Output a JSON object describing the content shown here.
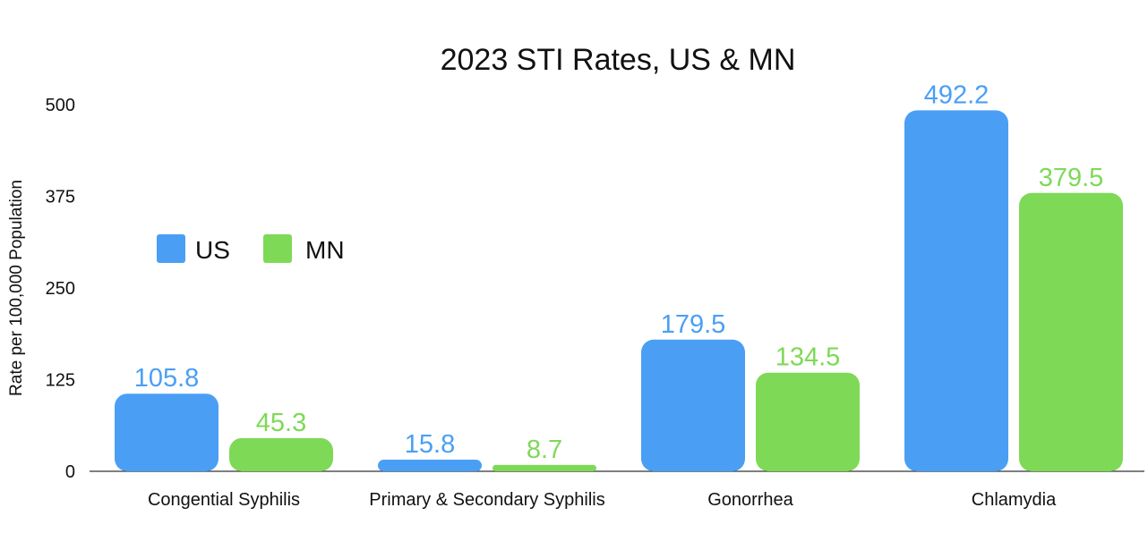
{
  "chart_data": {
    "type": "bar",
    "title": "2023 STI Rates, US & MN",
    "ylabel": "Rate per 100,000 Population",
    "xlabel": "",
    "categories": [
      "Congential Syphilis",
      "Primary & Secondary Syphilis",
      "Gonorrhea",
      "Chlamydia"
    ],
    "series": [
      {
        "name": "US",
        "color": "#4a9ff5",
        "values": [
          105.8,
          15.8,
          179.5,
          492.2
        ],
        "labels": [
          "105.8",
          "15.8",
          "179.5",
          "492.2"
        ]
      },
      {
        "name": "MN",
        "color": "#7ed957",
        "values": [
          45.3,
          8.7,
          134.5,
          379.5
        ],
        "labels": [
          "45.3",
          "8.7",
          "134.5",
          "379.5"
        ]
      }
    ],
    "ylim": [
      0,
      500
    ],
    "yticks": [
      "0",
      "125",
      "250",
      "375",
      "500"
    ],
    "grid": false,
    "legend": "left"
  }
}
